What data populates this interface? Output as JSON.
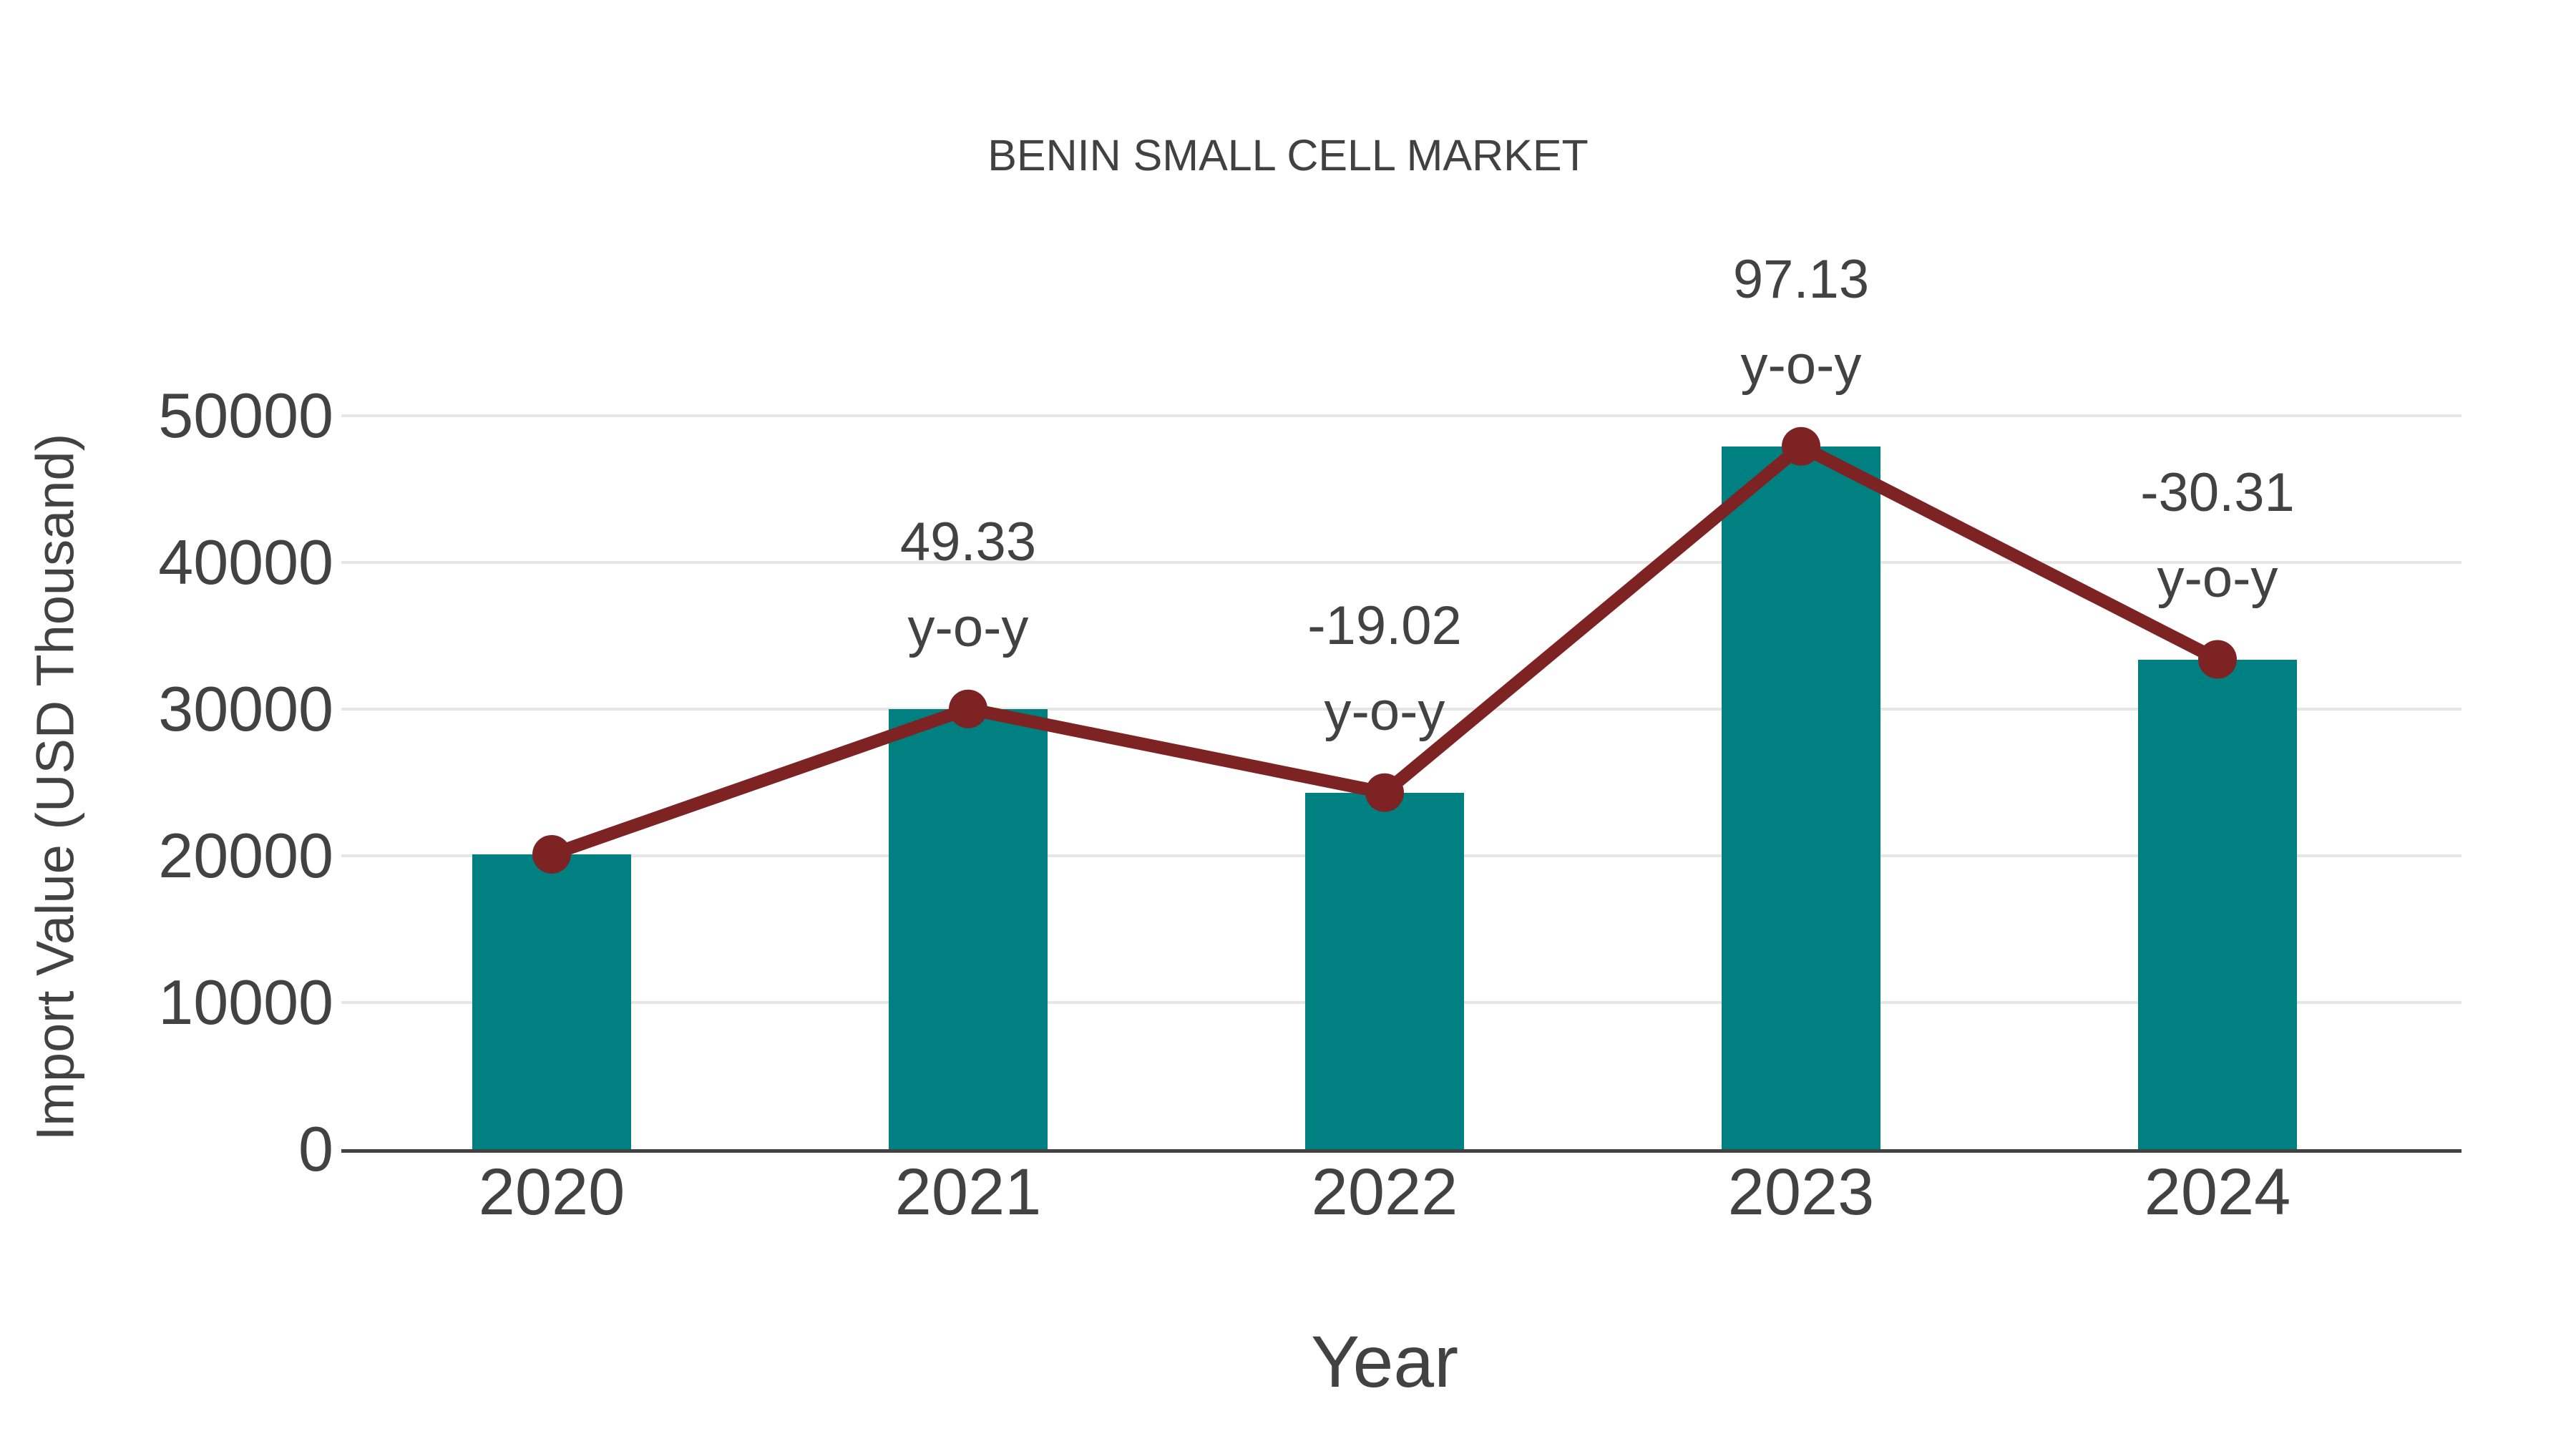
{
  "chart_data": {
    "type": "bar",
    "title": "BENIN SMALL CELL MARKET",
    "xlabel": "Year",
    "ylabel": "Import Value (USD Thousand)",
    "categories": [
      "2020",
      "2021",
      "2022",
      "2023",
      "2024"
    ],
    "series": [
      {
        "name": "Import Value (USD Thousand)",
        "type": "bar",
        "color": "#008080",
        "values": [
          20100,
          30015,
          24306,
          47914,
          33390
        ]
      },
      {
        "name": "y-o-y change (%)",
        "type": "line",
        "color": "#7e2323",
        "values": [
          null,
          49.33,
          -19.02,
          97.13,
          -30.31
        ]
      }
    ],
    "annotations": [
      {
        "x": "2021",
        "line1": "49.33",
        "line2": "y-o-y"
      },
      {
        "x": "2022",
        "line1": "-19.02",
        "line2": "y-o-y"
      },
      {
        "x": "2023",
        "line1": "97.13",
        "line2": "y-o-y"
      },
      {
        "x": "2024",
        "line1": "-30.31",
        "line2": "y-o-y"
      }
    ],
    "ylim": [
      0,
      50000
    ],
    "y_tick_step": 10000,
    "grid": "horizontal-light",
    "legend": "none"
  },
  "axes": {
    "y_ticks": [
      "0",
      "10000",
      "20000",
      "30000",
      "40000",
      "50000"
    ]
  },
  "colors": {
    "bar": "#008080",
    "line": "#7e2323",
    "marker": "#7e2323",
    "gridline": "#e6e6e6",
    "axis_line": "#424242",
    "text": "#424242",
    "background": "#ffffff"
  }
}
